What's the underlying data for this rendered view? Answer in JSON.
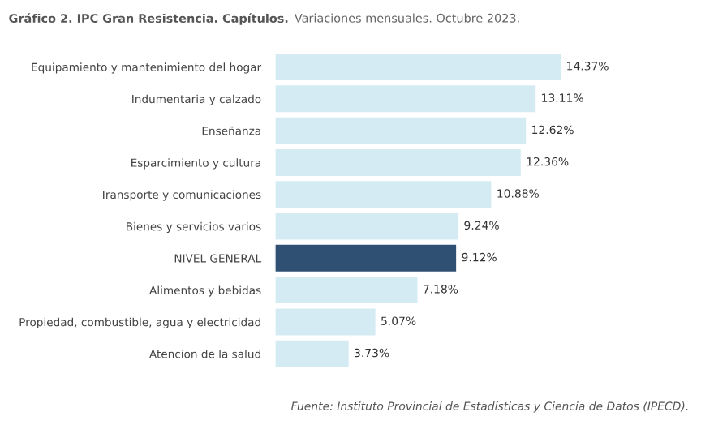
{
  "chart_data": {
    "type": "bar",
    "orientation": "horizontal",
    "title": "Gráfico 2. IPC Gran Resistencia. Capítulos.",
    "subtitle": "Variaciones mensuales. Octubre 2023.",
    "categories": [
      "Equipamiento y mantenimiento del hogar",
      "Indumentaria y calzado",
      "Enseñanza",
      "Esparcimiento y cultura",
      "Transporte y comunicaciones",
      "Bienes y servicios varios",
      "NIVEL GENERAL",
      "Alimentos y bebidas",
      "Propiedad, combustible, agua y electricidad",
      "Atencion de la salud"
    ],
    "values": [
      14.37,
      13.11,
      12.62,
      12.36,
      10.88,
      9.24,
      9.12,
      7.18,
      5.07,
      3.73
    ],
    "colors": [
      "#d4ebf3",
      "#d4ebf3",
      "#d4ebf3",
      "#d4ebf3",
      "#d4ebf3",
      "#d4ebf3",
      "#2f5072",
      "#d4ebf3",
      "#d4ebf3",
      "#d4ebf3"
    ],
    "value_labels": [
      "14.37%",
      "13.11%",
      "12.62%",
      "12.36%",
      "10.88%",
      "9.24%",
      "9.12%",
      "7.18%",
      "5.07%",
      "3.73%"
    ],
    "grid": false,
    "legend": false,
    "annotations": [
      "Fuente: Instituto Provincial de Estadísticas y Ciencia de Datos (IPECD)."
    ]
  }
}
